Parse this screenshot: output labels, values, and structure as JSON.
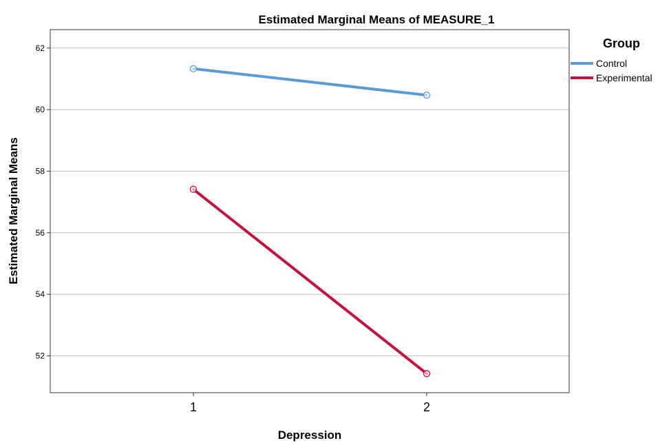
{
  "chart_data": {
    "type": "line",
    "title": "Estimated Marginal Means of MEASURE_1",
    "xlabel": "Depression",
    "ylabel": "Estimated Marginal Means",
    "categories": [
      "1",
      "2"
    ],
    "yticks": [
      52,
      54,
      56,
      58,
      60,
      62
    ],
    "ylim": [
      50.8,
      62.6
    ],
    "grid": true,
    "legend": {
      "title": "Group",
      "placement": "right"
    },
    "series": [
      {
        "name": "Control",
        "values": [
          61.33,
          60.47
        ],
        "color": "#5b9bd5"
      },
      {
        "name": "Experimental",
        "values": [
          57.41,
          51.42
        ],
        "color": "#c8103e"
      }
    ]
  }
}
